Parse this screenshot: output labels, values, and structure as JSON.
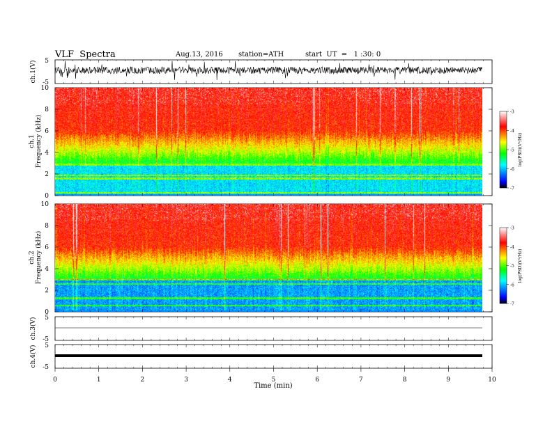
{
  "header": {
    "title": "VLF  Spectra",
    "date": "Aug.13, 2016",
    "station": "station=ATH",
    "start": "start  UT  =   1 :30: 0"
  },
  "chart_data": {
    "type": "heatmap",
    "xlabel": "Time  (min)",
    "xlim": [
      0,
      10
    ],
    "xticks": [
      "0",
      "1",
      "2",
      "3",
      "4",
      "5",
      "6",
      "7",
      "8",
      "9",
      "10"
    ],
    "panels": [
      {
        "id": "ch1v",
        "type": "line",
        "ylabel": "ch.1(V)",
        "ylim": [
          -5,
          5
        ],
        "yticks": [
          "5",
          "-5"
        ]
      },
      {
        "id": "ch1spec",
        "type": "heatmap",
        "ylabel": "ch.1\nFrequency  (kHz)",
        "ylim": [
          0,
          10
        ],
        "yticks": [
          "0",
          "2",
          "4",
          "6",
          "8",
          "10"
        ],
        "colorbar": {
          "label": "log(PSD)(V²/Hz)",
          "range": [
            -7,
            -3
          ],
          "ticks": [
            "-3",
            "-4",
            "-5",
            "-6",
            "-7"
          ]
        }
      },
      {
        "id": "ch2spec",
        "type": "heatmap",
        "ylabel": "ch.2\nFrequency  (kHz)",
        "ylim": [
          0,
          10
        ],
        "yticks": [
          "0",
          "2",
          "4",
          "6",
          "8",
          "10"
        ],
        "colorbar": {
          "label": "log(PSD)(V²/Hz)",
          "range": [
            -7,
            -3
          ],
          "ticks": [
            "-3",
            "-4",
            "-5",
            "-6",
            "-7"
          ]
        }
      },
      {
        "id": "ch3v",
        "type": "line",
        "ylabel": "ch.3(V)",
        "ylim": [
          -5,
          5
        ],
        "yticks": [
          "5",
          "-5"
        ]
      },
      {
        "id": "ch4v",
        "type": "line",
        "ylabel": "ch.4(V)",
        "ylim": [
          -5,
          5
        ],
        "yticks": [
          "5",
          "-5"
        ]
      }
    ]
  },
  "colors": {
    "colormap": [
      "#000000",
      "#0000ff",
      "#00ffff",
      "#00ff00",
      "#ffff00",
      "#ff0000",
      "#ffffff"
    ]
  }
}
